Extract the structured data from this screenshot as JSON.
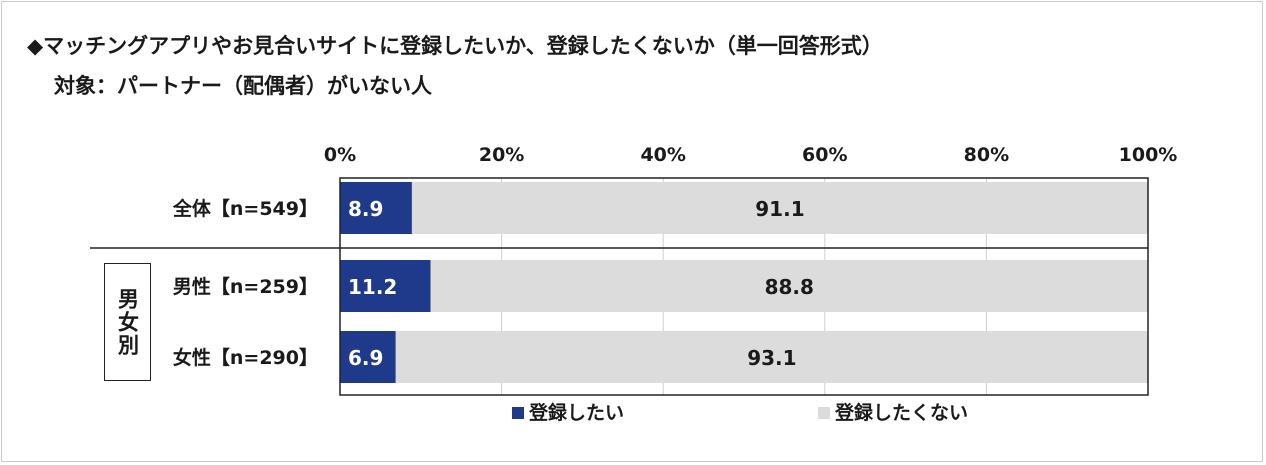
{
  "title": "◆マッチングアプリやお見合いサイトに登録したいか、登録したくないか（単一回答形式）",
  "subtitle": "対象：パートナー（配偶者）がいない人",
  "group_label": "男女別",
  "chart_data": {
    "type": "bar",
    "orientation": "horizontal",
    "stacked": true,
    "categories": [
      "全体【n=549】",
      "男性【n=259】",
      "女性【n=290】"
    ],
    "series": [
      {
        "name": "登録したい",
        "values": [
          8.9,
          11.2,
          6.9
        ],
        "color": "#1f3a8a"
      },
      {
        "name": "登録したくない",
        "values": [
          91.1,
          88.8,
          93.1
        ],
        "color": "#dcdcdc"
      }
    ],
    "xlim": [
      0,
      100
    ],
    "x_tick_labels": [
      "0%",
      "20%",
      "40%",
      "60%",
      "80%",
      "100%"
    ],
    "x_ticks": [
      0,
      20,
      40,
      60,
      80,
      100
    ],
    "legend_position": "bottom",
    "grid": true
  }
}
